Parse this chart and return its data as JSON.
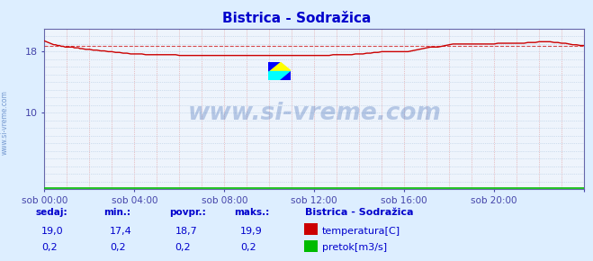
{
  "title": "Bistrica - Sodražica",
  "bg_color": "#ddeeff",
  "plot_bg_color": "#eef4fc",
  "grid_color_h": "#b0c8e0",
  "grid_color_v": "#e09090",
  "title_color": "#0000cc",
  "axis_color": "#6666aa",
  "tick_color": "#4444aa",
  "temp_color": "#cc0000",
  "flow_color": "#00bb00",
  "avg_line_color": "#cc0000",
  "x_ticks": [
    0,
    240,
    480,
    720,
    960,
    1200,
    1440
  ],
  "x_tick_labels": [
    "sob 00:00",
    "sob 04:00",
    "sob 08:00",
    "sob 12:00",
    "sob 16:00",
    "sob 20:00",
    ""
  ],
  "y_ticks": [
    10,
    18
  ],
  "ylim": [
    0,
    21.0
  ],
  "xlim": [
    0,
    1440
  ],
  "avg_temp": 18.7,
  "watermark": "www.si-vreme.com",
  "watermark_color": "#2255aa",
  "watermark_alpha": 0.28,
  "sidebar_text": "www.si-vreme.com",
  "footer_labels": [
    "sedaj:",
    "min.:",
    "povpr.:",
    "maks.:"
  ],
  "footer_temp": [
    "19,0",
    "17,4",
    "18,7",
    "19,9"
  ],
  "footer_flow": [
    "0,2",
    "0,2",
    "0,2",
    "0,2"
  ],
  "legend_title": "Bistrica - Sodražica",
  "legend_items": [
    "temperatura[C]",
    "pretok[m3/s]"
  ],
  "legend_colors": [
    "#cc0000",
    "#00bb00"
  ],
  "temp_data_x": [
    0,
    5,
    10,
    15,
    20,
    25,
    30,
    35,
    40,
    45,
    50,
    55,
    60,
    65,
    70,
    75,
    80,
    85,
    90,
    95,
    100,
    110,
    120,
    130,
    140,
    150,
    160,
    170,
    180,
    190,
    200,
    210,
    220,
    230,
    240,
    250,
    260,
    270,
    280,
    290,
    300,
    310,
    320,
    330,
    340,
    350,
    360,
    370,
    380,
    390,
    400,
    410,
    420,
    430,
    440,
    450,
    460,
    470,
    480,
    490,
    500,
    510,
    520,
    530,
    540,
    550,
    560,
    570,
    580,
    590,
    600,
    610,
    620,
    630,
    640,
    650,
    660,
    670,
    680,
    690,
    700,
    710,
    720,
    730,
    740,
    750,
    760,
    770,
    780,
    790,
    800,
    810,
    820,
    830,
    840,
    850,
    860,
    870,
    880,
    890,
    900,
    910,
    920,
    930,
    940,
    950,
    960,
    970,
    980,
    990,
    1000,
    1010,
    1020,
    1030,
    1040,
    1050,
    1060,
    1070,
    1080,
    1090,
    1100,
    1110,
    1120,
    1130,
    1140,
    1150,
    1160,
    1170,
    1180,
    1190,
    1200,
    1210,
    1220,
    1230,
    1240,
    1250,
    1260,
    1270,
    1280,
    1290,
    1300,
    1310,
    1320,
    1330,
    1340,
    1350,
    1360,
    1370,
    1380,
    1390,
    1400,
    1410,
    1420,
    1430,
    1440
  ],
  "temp_data_y": [
    19.4,
    19.3,
    19.2,
    19.1,
    19.0,
    18.9,
    18.9,
    18.8,
    18.8,
    18.7,
    18.7,
    18.6,
    18.6,
    18.6,
    18.6,
    18.6,
    18.5,
    18.5,
    18.5,
    18.4,
    18.4,
    18.3,
    18.3,
    18.2,
    18.2,
    18.1,
    18.1,
    18.0,
    18.0,
    17.9,
    17.9,
    17.8,
    17.8,
    17.7,
    17.7,
    17.7,
    17.7,
    17.6,
    17.6,
    17.6,
    17.6,
    17.6,
    17.6,
    17.6,
    17.6,
    17.6,
    17.5,
    17.5,
    17.5,
    17.5,
    17.5,
    17.5,
    17.5,
    17.5,
    17.5,
    17.5,
    17.5,
    17.5,
    17.5,
    17.5,
    17.5,
    17.5,
    17.5,
    17.5,
    17.5,
    17.5,
    17.5,
    17.5,
    17.5,
    17.5,
    17.5,
    17.5,
    17.5,
    17.5,
    17.5,
    17.5,
    17.5,
    17.5,
    17.5,
    17.5,
    17.5,
    17.5,
    17.5,
    17.5,
    17.5,
    17.5,
    17.5,
    17.6,
    17.6,
    17.6,
    17.6,
    17.6,
    17.6,
    17.7,
    17.7,
    17.7,
    17.8,
    17.8,
    17.9,
    17.9,
    18.0,
    18.0,
    18.0,
    18.0,
    18.0,
    18.0,
    18.0,
    18.0,
    18.1,
    18.2,
    18.3,
    18.4,
    18.5,
    18.6,
    18.6,
    18.6,
    18.7,
    18.8,
    18.9,
    19.0,
    19.0,
    19.0,
    19.0,
    19.0,
    19.0,
    19.0,
    19.0,
    19.0,
    19.0,
    19.0,
    19.0,
    19.1,
    19.1,
    19.1,
    19.1,
    19.1,
    19.1,
    19.1,
    19.1,
    19.2,
    19.2,
    19.2,
    19.3,
    19.3,
    19.3,
    19.3,
    19.2,
    19.2,
    19.1,
    19.1,
    19.0,
    18.9,
    18.9,
    18.8,
    18.8
  ]
}
